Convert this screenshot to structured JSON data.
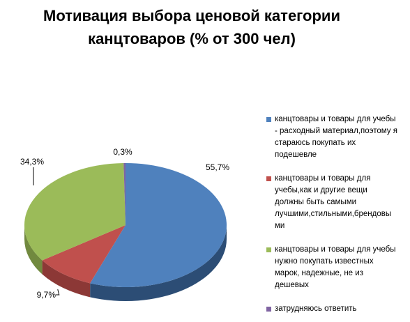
{
  "chart_data": {
    "type": "pie",
    "title_lines": [
      "Мотивация выбора ценовой категории",
      "канцтоваров (% от 300 чел)"
    ],
    "categories": [
      "канцтовары и товары для учебы - расходный материал,поэтому я стараюсь покупать их подешевле",
      "канцтовары и товары для учебы,как и другие вещи должны быть самыми лучшими,стильными,брендовыми",
      "канцтовары и товары для учебы нужно покупать известных марок, надежные, не из дешевых",
      "затрудняюсь ответить"
    ],
    "values": [
      55.7,
      9.7,
      34.3,
      0.3
    ],
    "value_labels": [
      "55,7%",
      "9,7%",
      "34,3%",
      "0,3%"
    ],
    "colors": [
      "#4F81BD",
      "#C0504D",
      "#9BBB59",
      "#8064A2"
    ],
    "side_colors": [
      "#2C4D75",
      "#8C3836",
      "#71893F",
      "#5C4776"
    ],
    "legend_position": "right"
  },
  "legend": {
    "items": [
      {
        "lines": [
          "канцтовары и товары для учебы",
          "- расходный материал,поэтому я",
          "стараюсь покупать их",
          "подешевле"
        ]
      },
      {
        "lines": [
          "канцтовары и товары для",
          "учебы,как и другие вещи",
          "должны быть самыми",
          "лучшими,стильными,брендовы",
          "ми"
        ]
      },
      {
        "lines": [
          "канцтовары и товары для учебы",
          "нужно покупать известных",
          "марок, надежные, не из",
          "дешевых"
        ]
      },
      {
        "lines": [
          "затрудняюсь ответить"
        ]
      }
    ]
  }
}
